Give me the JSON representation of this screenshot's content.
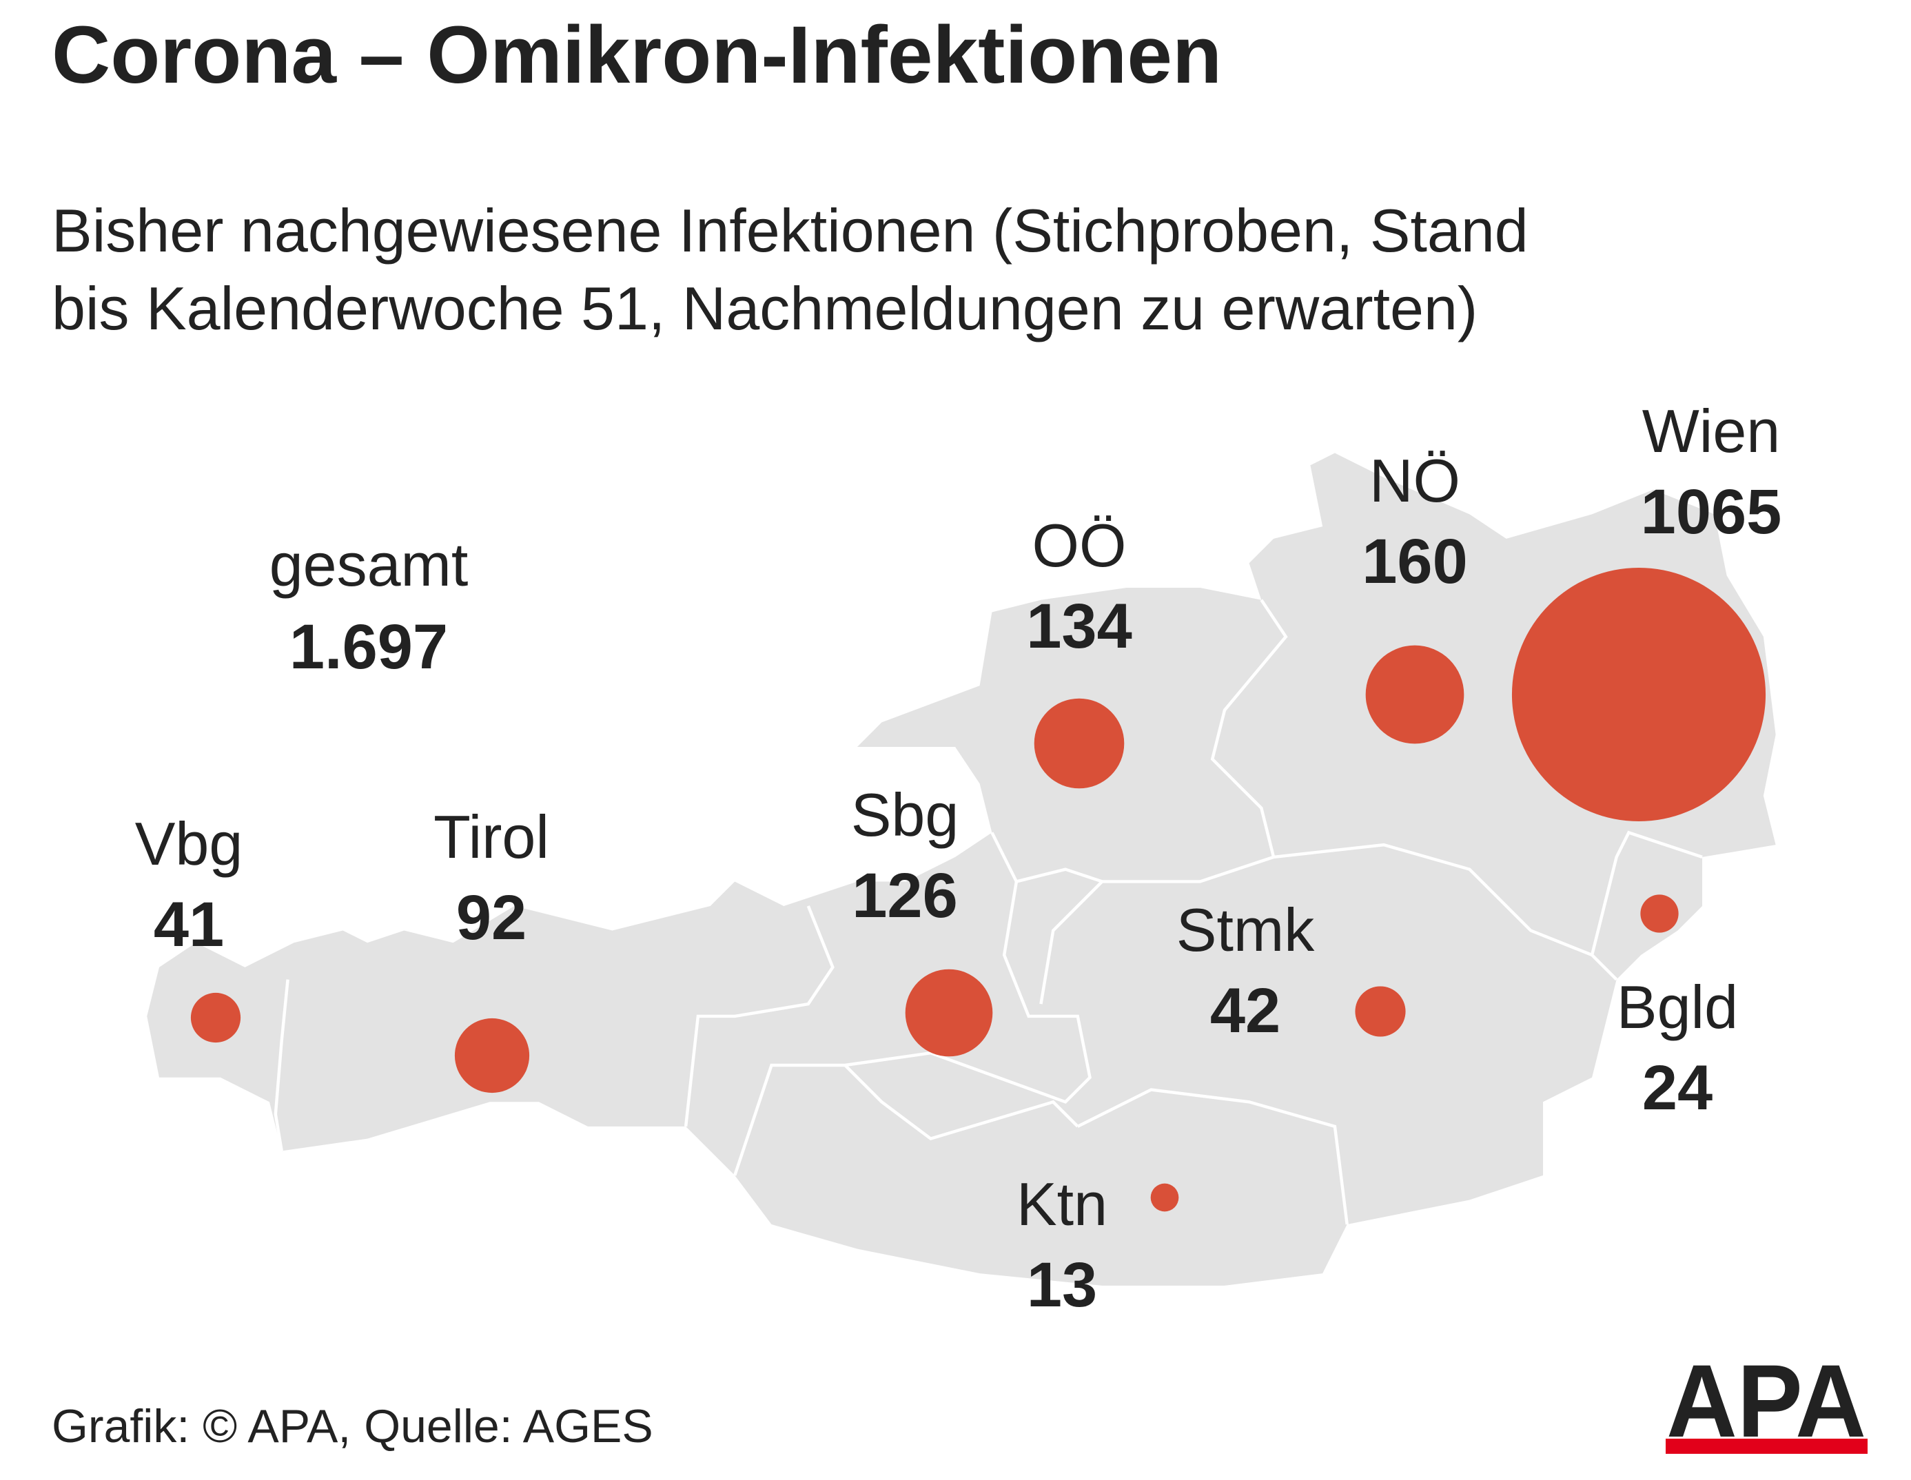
{
  "header": {
    "title": "Corona – Omikron-Infektionen",
    "subtitle": [
      "Bisher nachgewiesene Infektionen (Stichproben, Stand",
      "bis Kalenderwoche 51, Nachmeldungen zu erwarten)"
    ]
  },
  "total": {
    "label": "gesamt",
    "value": "1.697"
  },
  "bubble_color": "#d95038",
  "regions": [
    {
      "name": "Vbg",
      "value": 41
    },
    {
      "name": "Tirol",
      "value": 92
    },
    {
      "name": "Sbg",
      "value": 126
    },
    {
      "name": "OÖ",
      "value": 134
    },
    {
      "name": "NÖ",
      "value": 160
    },
    {
      "name": "Wien",
      "value": 1065
    },
    {
      "name": "Bgld",
      "value": 24
    },
    {
      "name": "Stmk",
      "value": 42
    },
    {
      "name": "Ktn",
      "value": 13
    }
  ],
  "footer": {
    "source": "Grafik: © APA, Quelle: AGES",
    "logo": "APA"
  }
}
